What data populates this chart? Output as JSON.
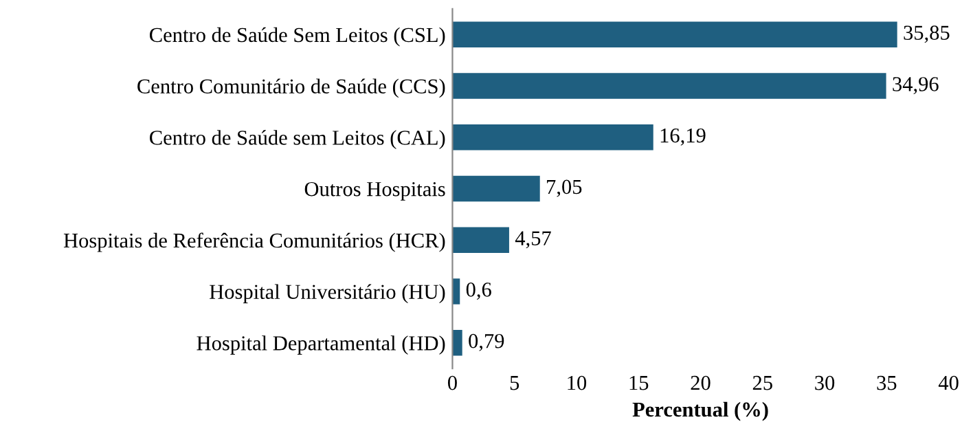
{
  "chart_data": {
    "type": "bar",
    "orientation": "horizontal",
    "xlabel": "Percentual (%)",
    "categories": [
      "Centro de Saúde Sem Leitos (CSL)",
      "Centro Comunitário de Saúde (CCS)",
      "Centro de Saúde sem Leitos (CAL)",
      "Outros Hospitais",
      "Hospitais de Referência Comunitários (HCR)",
      "Hospital Universitário (HU)",
      "Hospital Departamental (HD)"
    ],
    "values": [
      35.85,
      34.96,
      16.19,
      7.05,
      4.57,
      0.6,
      0.79
    ],
    "value_labels": [
      "35,85",
      "34,96",
      "16,19",
      "7,05",
      "4,57",
      "0,6",
      "0,79"
    ],
    "color": "#1f5f80",
    "xlim": [
      0,
      40
    ],
    "xticks": [
      0,
      5,
      10,
      15,
      20,
      25,
      30,
      35,
      40
    ],
    "grid": false,
    "legend": false
  }
}
